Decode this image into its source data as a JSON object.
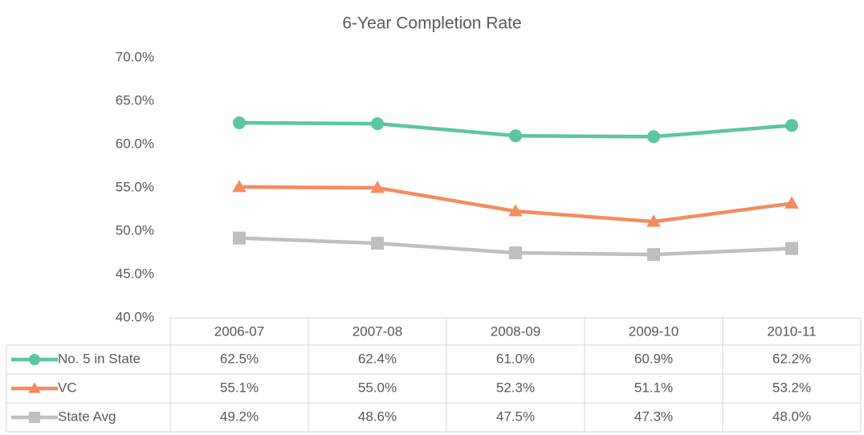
{
  "chart_data": {
    "type": "line",
    "title": "6-Year Completion Rate",
    "categories": [
      "2006-07",
      "2007-08",
      "2008-09",
      "2009-10",
      "2010-11"
    ],
    "series": [
      {
        "name": "No. 5 in State",
        "color": "#5cc6a0",
        "marker": "circle",
        "values": [
          62.5,
          62.4,
          61.0,
          60.9,
          62.2
        ],
        "value_labels": [
          "62.5%",
          "62.4%",
          "61.0%",
          "60.9%",
          "62.2%"
        ]
      },
      {
        "name": "VC",
        "color": "#f58c5e",
        "marker": "triangle",
        "values": [
          55.1,
          55.0,
          52.3,
          51.1,
          53.2
        ],
        "value_labels": [
          "55.1%",
          "55.0%",
          "52.3%",
          "51.1%",
          "53.2%"
        ]
      },
      {
        "name": "State Avg",
        "color": "#bfbfbf",
        "marker": "square",
        "values": [
          49.2,
          48.6,
          47.5,
          47.3,
          48.0
        ],
        "value_labels": [
          "49.2%",
          "48.6%",
          "47.5%",
          "47.3%",
          "48.0%"
        ]
      }
    ],
    "ylim": [
      40,
      70
    ],
    "yticks": [
      {
        "value": 40,
        "label": "40.0%"
      },
      {
        "value": 45,
        "label": "45.0%"
      },
      {
        "value": 50,
        "label": "50.0%"
      },
      {
        "value": 55,
        "label": "55.0%"
      },
      {
        "value": 60,
        "label": "60.0%"
      },
      {
        "value": 65,
        "label": "65.0%"
      },
      {
        "value": 70,
        "label": "70.0%"
      }
    ],
    "grid": false,
    "data_table": true
  }
}
